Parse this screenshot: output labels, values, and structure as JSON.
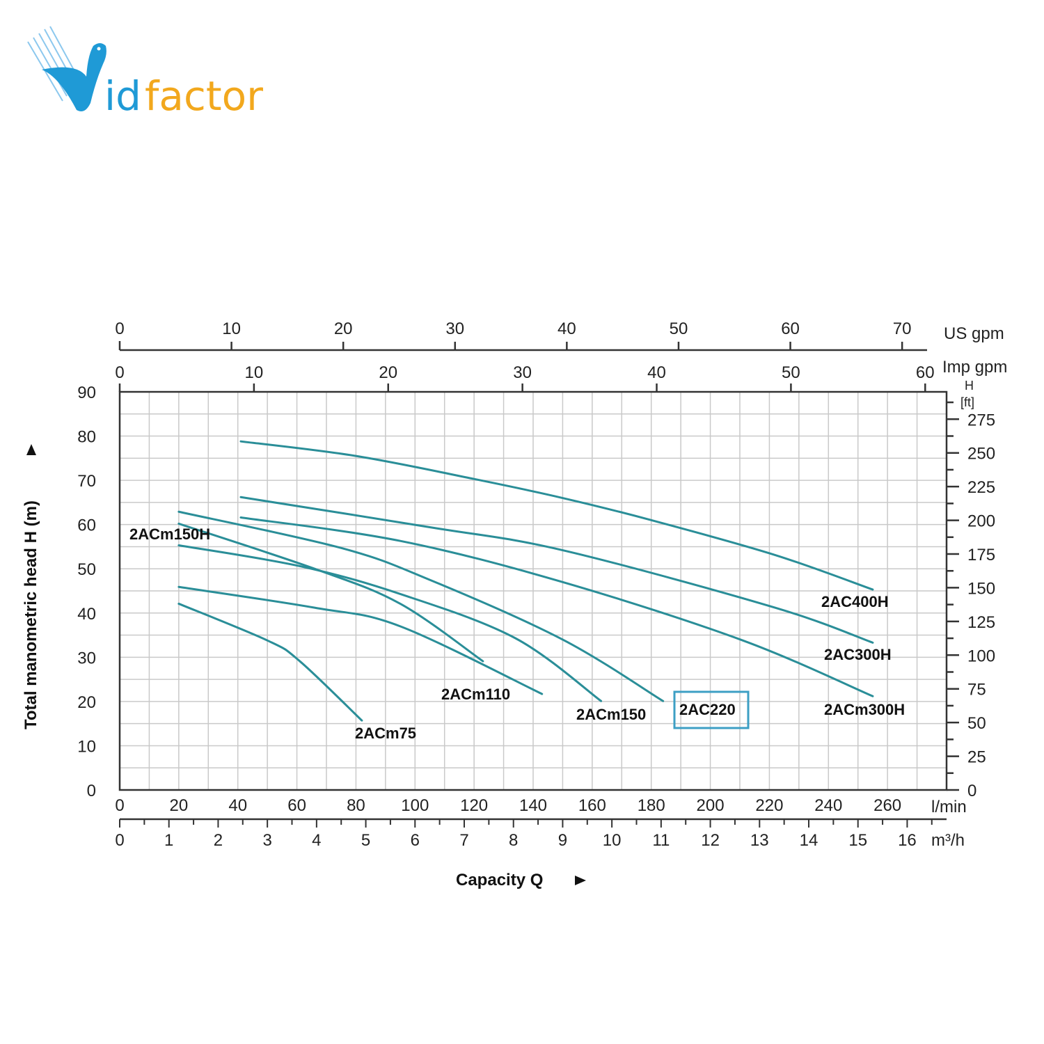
{
  "logo": {
    "text_v": "V",
    "text_id": "id",
    "text_factor": "factor",
    "blue": "#1f9ad6",
    "orange": "#f2a81d"
  },
  "chart_data": {
    "type": "line",
    "title": "",
    "xlabel": "Capacity Q",
    "ylabel": "Total manometric head H (m)",
    "xunit": "l/min",
    "xlim": [
      0,
      280
    ],
    "ylim": [
      0,
      90
    ],
    "grid": true,
    "x_ticks_lmin": [
      0,
      20,
      40,
      60,
      80,
      100,
      120,
      140,
      160,
      180,
      200,
      220,
      240,
      260
    ],
    "x_ticks_m3h": [
      0,
      1,
      2,
      3,
      4,
      5,
      6,
      7,
      8,
      9,
      10,
      11,
      12,
      13,
      14,
      15,
      16
    ],
    "x_unit_m3h": "m³/h",
    "top_axis_us_gpm": {
      "label": "US gpm",
      "ticks": [
        0,
        10,
        20,
        30,
        40,
        50,
        60,
        70
      ]
    },
    "top_axis_imp_gpm": {
      "label": "Imp gpm",
      "ticks": [
        0,
        10,
        20,
        30,
        40,
        50,
        60
      ]
    },
    "y_ticks_m": [
      0,
      10,
      20,
      30,
      40,
      50,
      60,
      70,
      80,
      90
    ],
    "right_axis_ft": {
      "label_h": "H",
      "label_unit": "[ft]",
      "ticks": [
        0,
        25,
        50,
        75,
        100,
        125,
        150,
        175,
        200,
        225,
        250,
        275
      ]
    },
    "curve_color": "#2a8e98",
    "highlight_color": "#3d9fc4",
    "series": [
      {
        "name": "2AC400H",
        "points": [
          [
            41,
            78.8
          ],
          [
            80,
            75.5
          ],
          [
            120,
            70.3
          ],
          [
            150,
            66
          ],
          [
            180,
            61
          ],
          [
            222,
            53.1
          ],
          [
            255,
            45.3
          ]
        ]
      },
      {
        "name": "2AC300H",
        "points": [
          [
            41,
            66.2
          ],
          [
            105,
            59.4
          ],
          [
            150,
            54.2
          ],
          [
            222,
            41.2
          ],
          [
            255,
            33.3
          ]
        ]
      },
      {
        "name": "2ACm300H",
        "points": [
          [
            41,
            61.6
          ],
          [
            95,
            56.3
          ],
          [
            150,
            47
          ],
          [
            211,
            33.8
          ],
          [
            255,
            21.2
          ]
        ]
      },
      {
        "name": "2AC220",
        "highlighted": true,
        "points": [
          [
            20,
            62.9
          ],
          [
            75,
            54.7
          ],
          [
            105,
            47.5
          ],
          [
            150,
            34
          ],
          [
            184,
            20.1
          ]
        ]
      },
      {
        "name": "2ACm150H",
        "points": [
          [
            20,
            60.2
          ],
          [
            66,
            50
          ],
          [
            95,
            42.1
          ],
          [
            123,
            29.1
          ]
        ]
      },
      {
        "name": "2ACm150",
        "points": [
          [
            20,
            55.3
          ],
          [
            61,
            50.6
          ],
          [
            95,
            44.3
          ],
          [
            134,
            34.3
          ],
          [
            163,
            20.1
          ]
        ]
      },
      {
        "name": "2ACm110",
        "points": [
          [
            20,
            45.9
          ],
          [
            66,
            41.2
          ],
          [
            95,
            37
          ],
          [
            143,
            21.7
          ]
        ]
      },
      {
        "name": "2ACm75",
        "points": [
          [
            20,
            42.1
          ],
          [
            50,
            33.8
          ],
          [
            61,
            29.1
          ],
          [
            82,
            15.7
          ]
        ]
      }
    ]
  }
}
